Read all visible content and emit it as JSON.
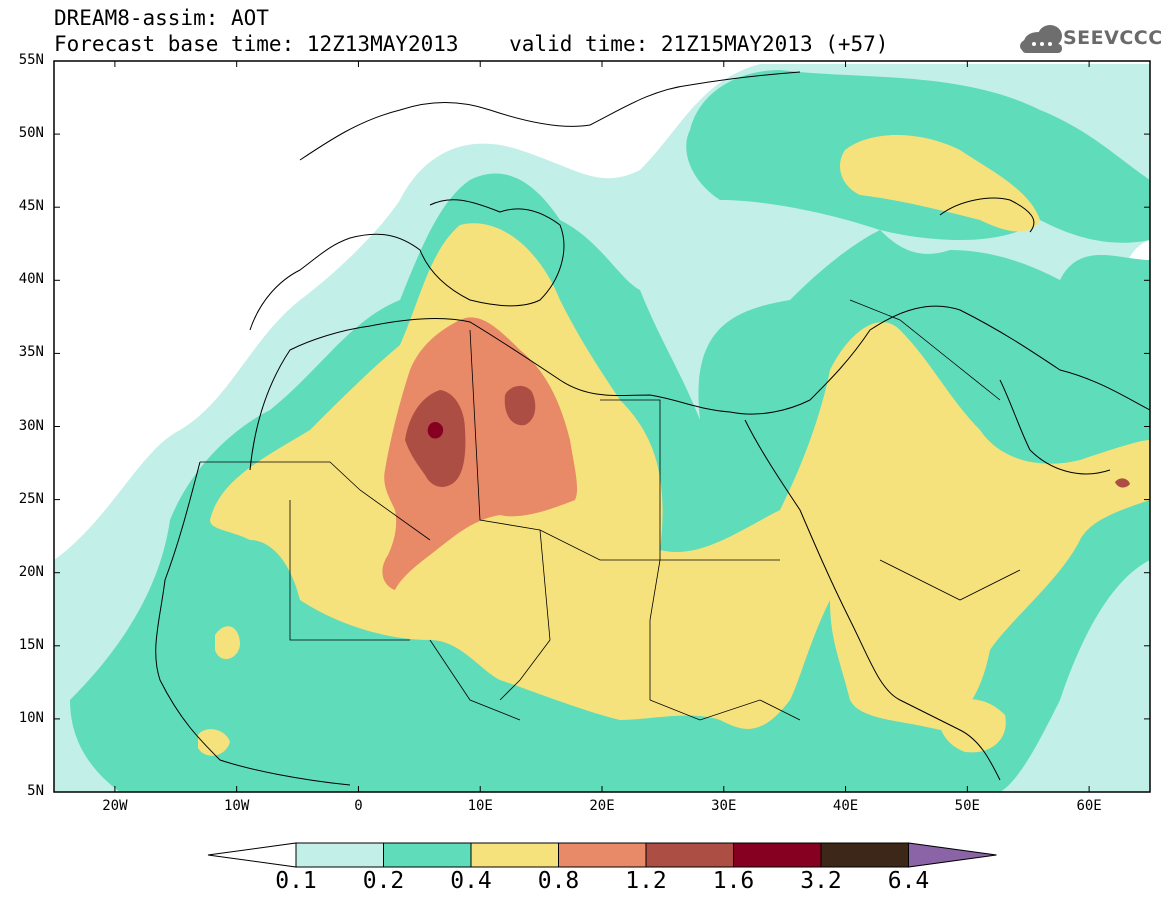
{
  "title": {
    "line1": "DREAM8-assim: AOT",
    "line2": "Forecast base time: 12Z13MAY2013    valid time: 21Z15MAY2013 (+57)"
  },
  "logo": {
    "text": "SEEVCCC"
  },
  "map": {
    "lon_range": [
      -25,
      65
    ],
    "lat_range": [
      5,
      55
    ],
    "lat_labels": [
      "55N",
      "50N",
      "45N",
      "40N",
      "35N",
      "30N",
      "25N",
      "20N",
      "15N",
      "10N",
      "5N"
    ],
    "lon_labels": [
      "20W",
      "10W",
      "0",
      "10E",
      "20E",
      "30E",
      "40E",
      "50E",
      "60E"
    ]
  },
  "colorbar": {
    "levels": [
      "0.1",
      "0.2",
      "0.4",
      "0.8",
      "1.2",
      "1.6",
      "3.2",
      "6.4"
    ],
    "colors": [
      "#ffffff",
      "#c2efe8",
      "#5fdcb9",
      "#f6e27c",
      "#e88a67",
      "#ad4e45",
      "#860021",
      "#3c2719",
      "#8a64a6"
    ]
  }
}
